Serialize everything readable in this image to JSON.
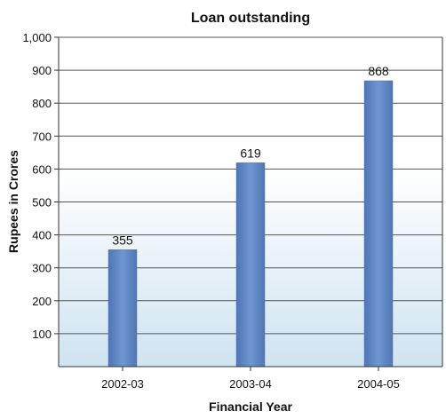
{
  "chart_data": {
    "type": "bar",
    "title": "Loan outstanding",
    "xlabel": "Financial Year",
    "ylabel": "Rupees in Crores",
    "categories": [
      "2002-03",
      "2003-04",
      "2004-05"
    ],
    "values": [
      355,
      619,
      868
    ],
    "data_labels": [
      "355",
      "619",
      "868"
    ],
    "ylim": [
      0,
      1000
    ],
    "y_ticks": [
      100,
      200,
      300,
      400,
      500,
      600,
      700,
      800,
      900,
      1000
    ],
    "y_tick_labels": [
      "100",
      "200",
      "300",
      "400",
      "500",
      "600",
      "700",
      "800",
      "900",
      "1,000"
    ],
    "grid": true,
    "legend": "none",
    "colors": {
      "bar": "#6f97d3",
      "bar_edge": "#4f75b3",
      "gradient_top": "#ffffff",
      "gradient_bottom": "#cfe3f1",
      "grid": "#555555"
    }
  }
}
